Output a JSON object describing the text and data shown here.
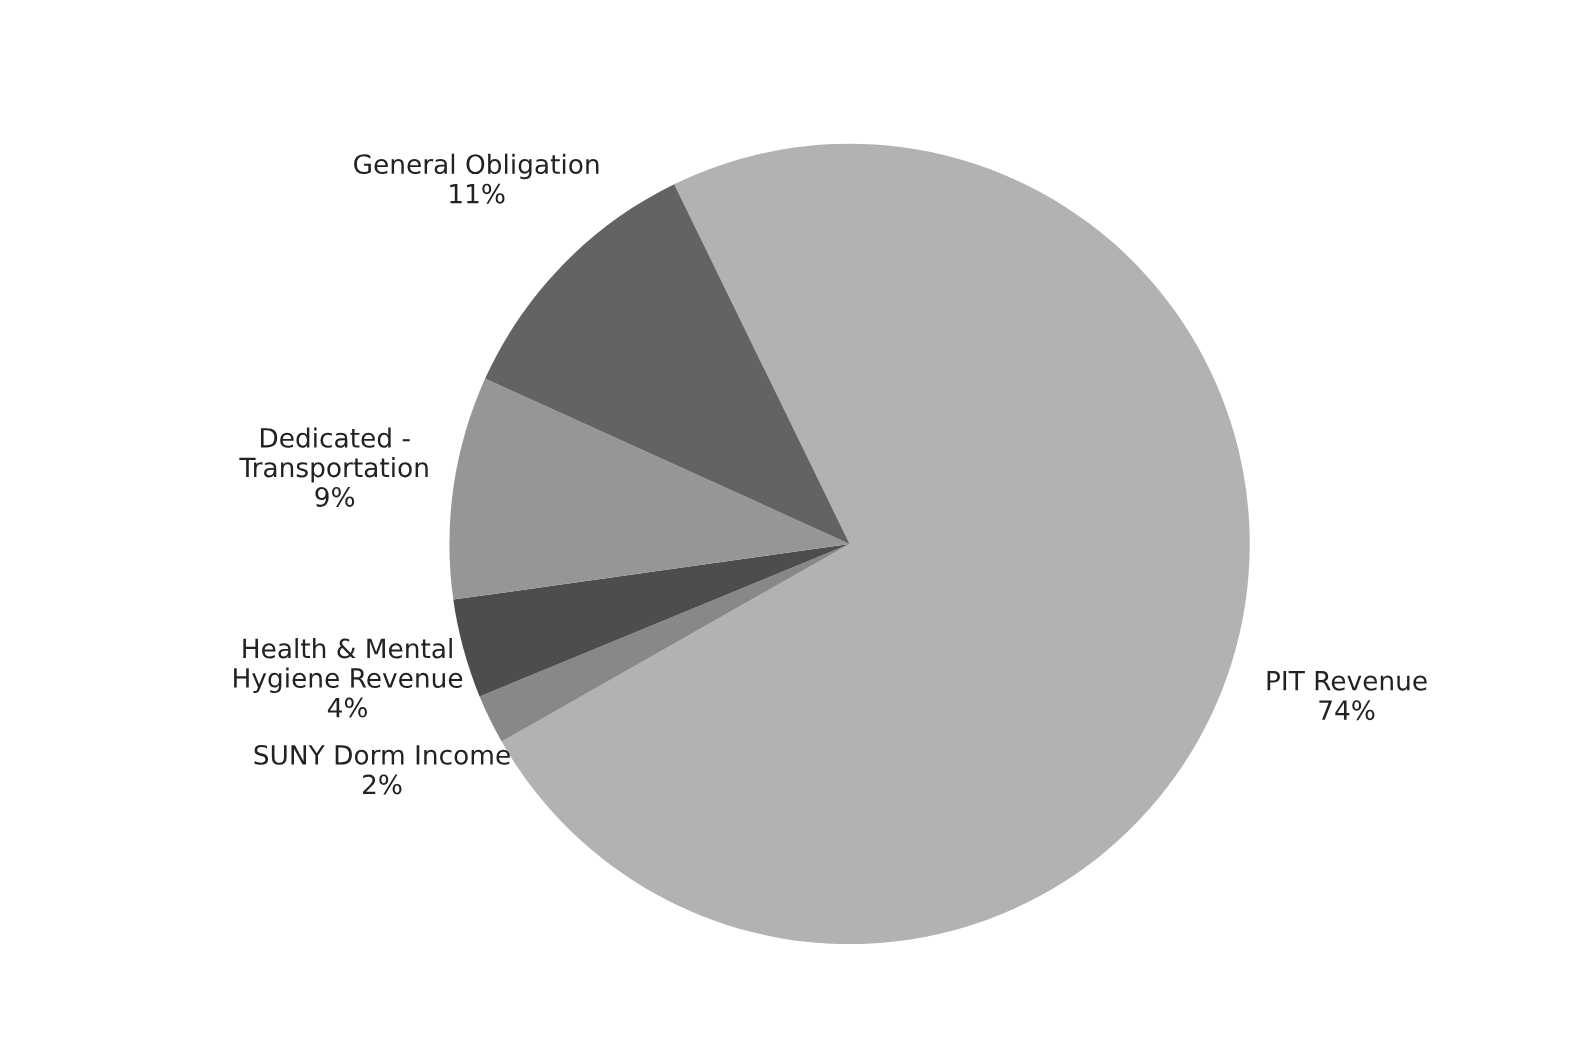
{
  "chart_data": {
    "type": "pie",
    "categories": [
      "PIT Revenue",
      "SUNY Dorm Income",
      "Health & Mental Hygiene Revenue",
      "Dedicated - Transportation",
      "General Obligation"
    ],
    "values": [
      74,
      2,
      4,
      9,
      11
    ],
    "value_labels": [
      "74%",
      "2%",
      "4%",
      "9%",
      "11%"
    ],
    "colors": [
      "#b2b2b2",
      "#888888",
      "#4d4d4d",
      "#969696",
      "#636363"
    ],
    "legend": false
  }
}
